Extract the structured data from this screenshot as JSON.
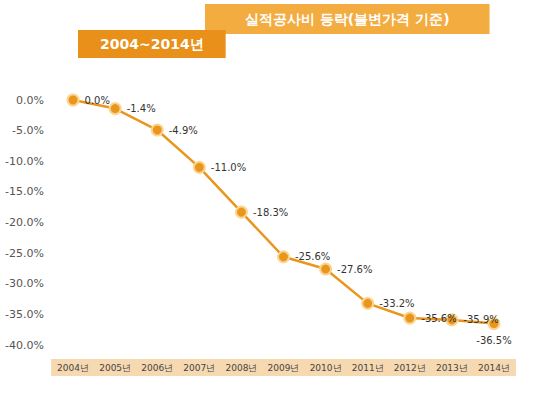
{
  "chart_data": {
    "type": "line",
    "title": "실적공사비 등락(불변가격 기준)",
    "subtitle": "2004~2014년",
    "categories": [
      "2004년",
      "2005년",
      "2006년",
      "2007년",
      "2008년",
      "2009년",
      "2010년",
      "2011년",
      "2012년",
      "2013년",
      "2014년"
    ],
    "values": [
      0.0,
      -1.4,
      -4.9,
      -11.0,
      -18.3,
      -25.6,
      -27.6,
      -33.2,
      -35.6,
      -35.9,
      -36.5
    ],
    "value_labels": [
      "0.0%",
      "-1.4%",
      "-4.9%",
      "-11.0%",
      "-18.3%",
      "-25.6%",
      "-27.6%",
      "-33.2%",
      "-35.6%",
      "-35.9%",
      "-36.5%"
    ],
    "color": "#e8961e",
    "marker": "circle",
    "ylim": [
      -40,
      0
    ],
    "yticks": [
      {
        "value": -40,
        "label": "-40.0%"
      },
      {
        "value": -35,
        "label": "-35.0%"
      },
      {
        "value": -30,
        "label": "-30.0%"
      },
      {
        "value": -25,
        "label": "-25.0%"
      },
      {
        "value": -20,
        "label": "-20.0%"
      },
      {
        "value": -15,
        "label": "-15.0%"
      },
      {
        "value": -10,
        "label": "-10.0%"
      },
      {
        "value": -5,
        "label": "-5.0%"
      },
      {
        "value": 0,
        "label": "0.0%"
      }
    ],
    "grid": false,
    "data_labels": true
  }
}
